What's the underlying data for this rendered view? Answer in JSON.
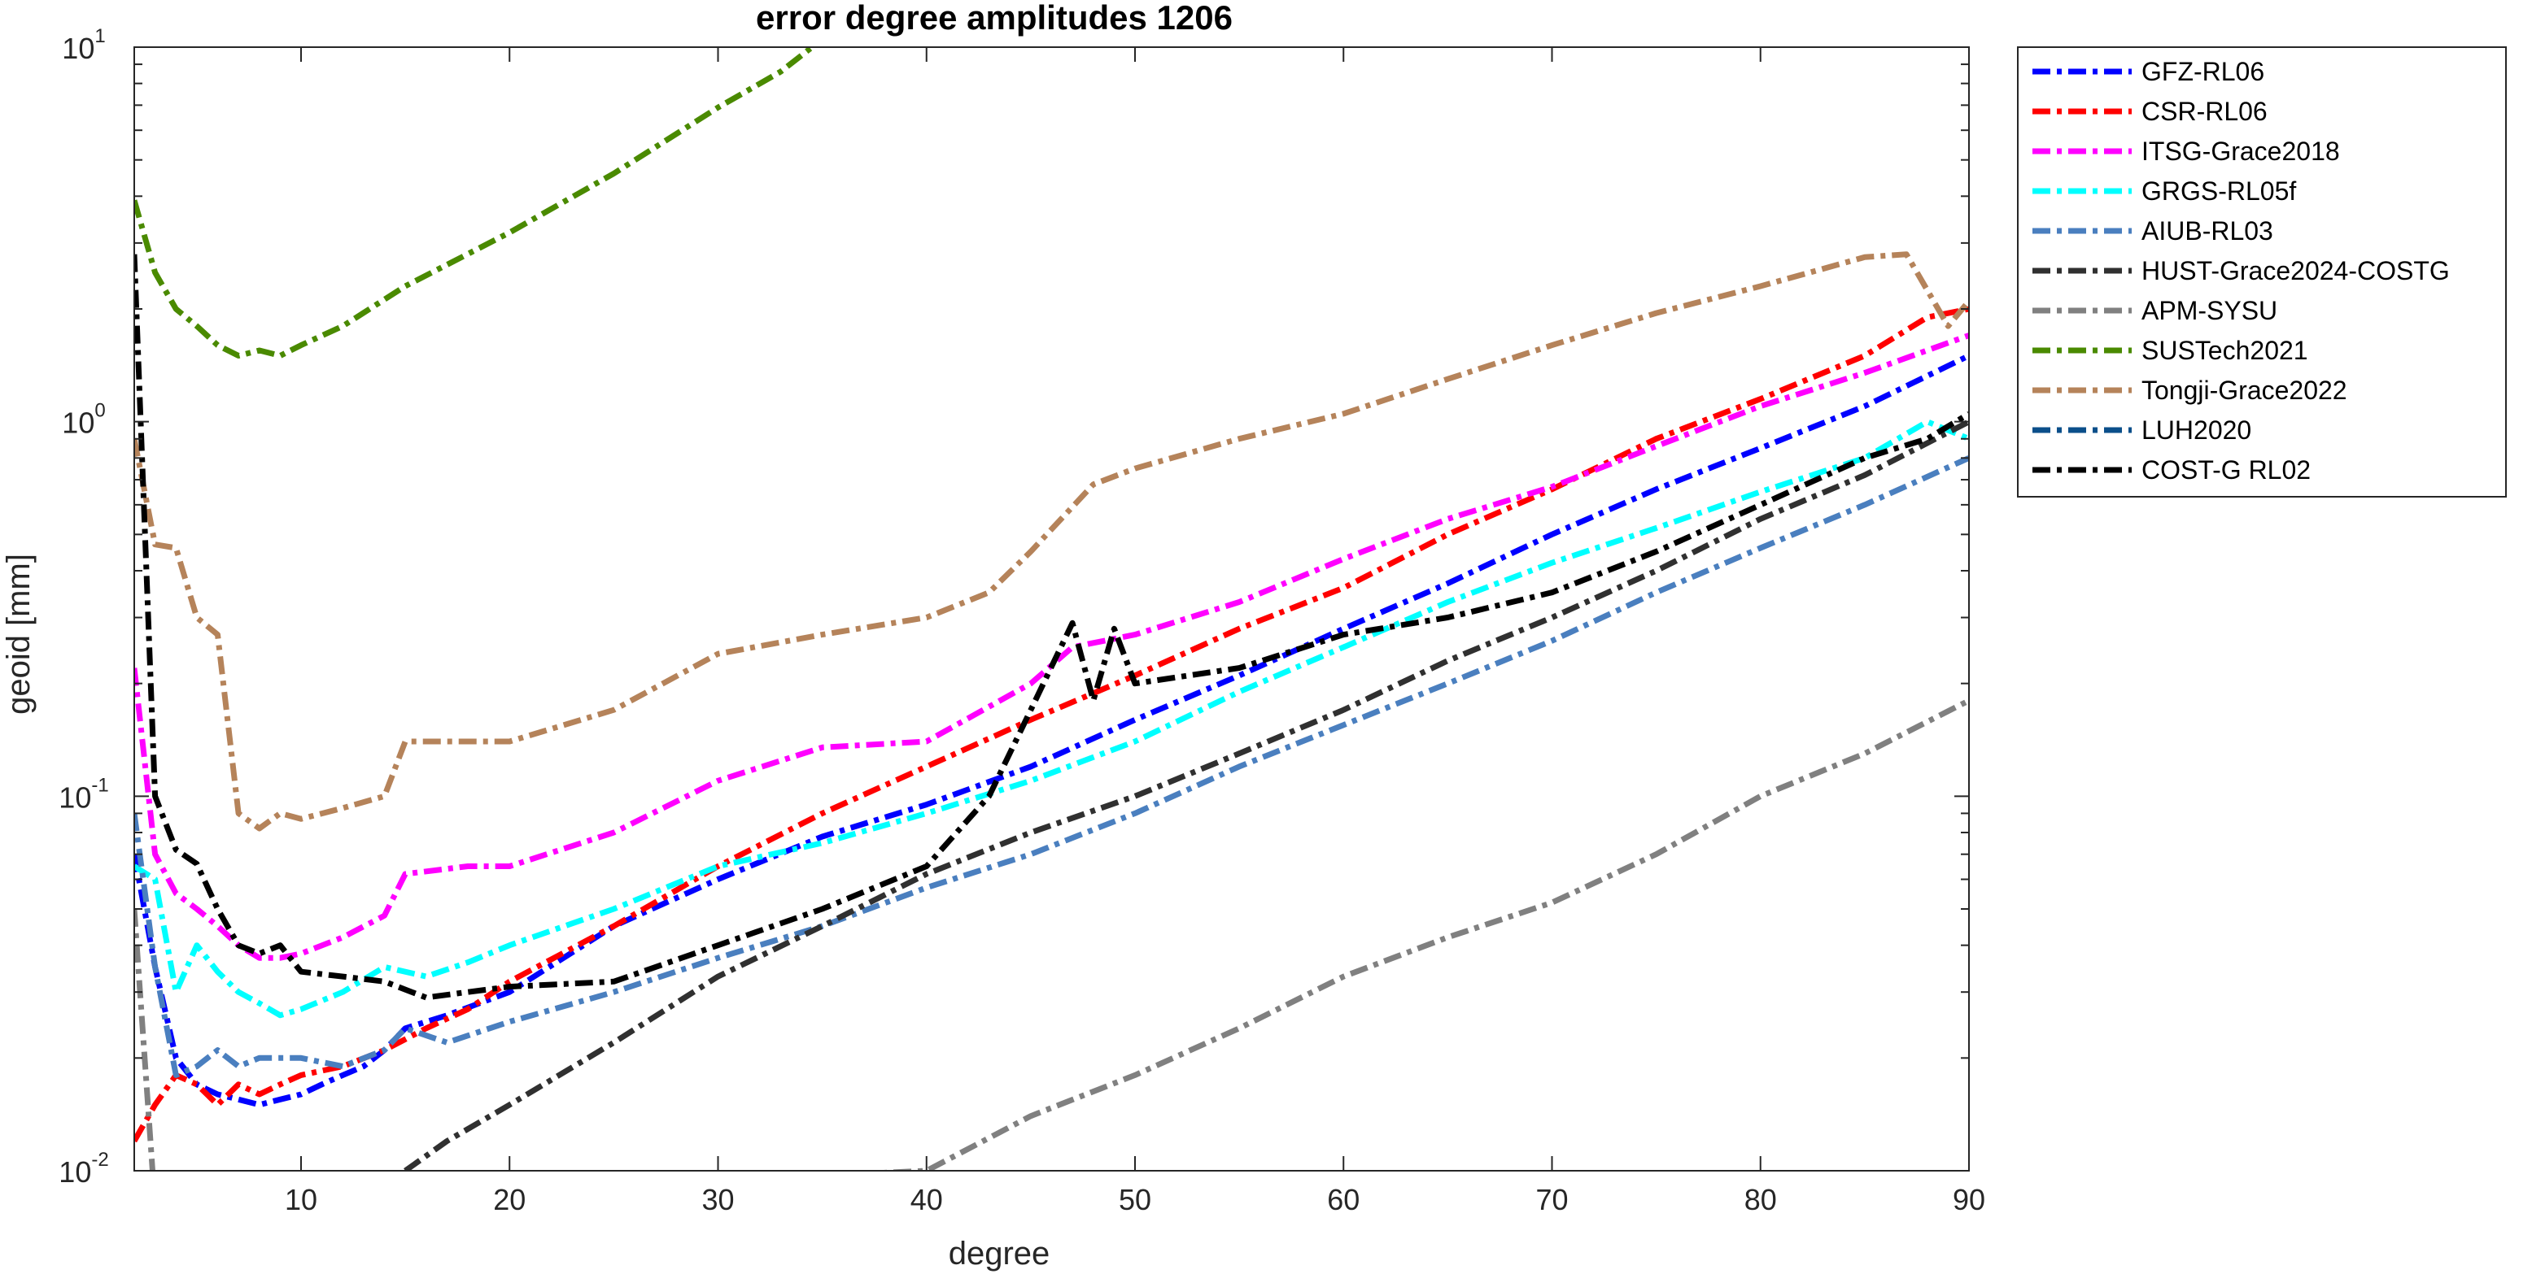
{
  "chart_data": {
    "type": "line",
    "title": "error degree amplitudes 1206",
    "xlabel": "degree",
    "ylabel": "geoid [mm]",
    "xlim": [
      2,
      90
    ],
    "ylim": [
      0.01,
      10
    ],
    "yscale": "log",
    "grid": false,
    "legend_position": "outside-right",
    "x_ticks": [
      10,
      20,
      30,
      40,
      50,
      60,
      70,
      80,
      90
    ],
    "x_tick_labels": [
      "10",
      "20",
      "30",
      "40",
      "50",
      "60",
      "70",
      "80",
      "90"
    ],
    "y_ticks": [
      {
        "value": 0.01,
        "base": "10",
        "exp": "-2"
      },
      {
        "value": 0.1,
        "base": "10",
        "exp": "-1"
      },
      {
        "value": 1,
        "base": "10",
        "exp": "0"
      },
      {
        "value": 10,
        "base": "10",
        "exp": "1"
      }
    ],
    "series": [
      {
        "name": "GFZ-RL06",
        "color": "#0000ff",
        "points": [
          [
            2,
            0.07
          ],
          [
            3,
            0.035
          ],
          [
            4,
            0.02
          ],
          [
            5,
            0.017
          ],
          [
            6,
            0.016
          ],
          [
            7,
            0.0155
          ],
          [
            8,
            0.015
          ],
          [
            9,
            0.0155
          ],
          [
            10,
            0.016
          ],
          [
            11,
            0.017
          ],
          [
            12,
            0.018
          ],
          [
            13,
            0.019
          ],
          [
            14,
            0.021
          ],
          [
            15,
            0.024
          ],
          [
            17,
            0.026
          ],
          [
            20,
            0.03
          ],
          [
            25,
            0.045
          ],
          [
            30,
            0.06
          ],
          [
            35,
            0.078
          ],
          [
            40,
            0.095
          ],
          [
            45,
            0.12
          ],
          [
            50,
            0.16
          ],
          [
            55,
            0.21
          ],
          [
            60,
            0.28
          ],
          [
            65,
            0.37
          ],
          [
            70,
            0.5
          ],
          [
            75,
            0.66
          ],
          [
            80,
            0.85
          ],
          [
            85,
            1.1
          ],
          [
            90,
            1.5
          ]
        ]
      },
      {
        "name": "CSR-RL06",
        "color": "#ff0000",
        "points": [
          [
            2,
            0.012
          ],
          [
            3,
            0.015
          ],
          [
            4,
            0.018
          ],
          [
            5,
            0.017
          ],
          [
            6,
            0.015
          ],
          [
            7,
            0.017
          ],
          [
            8,
            0.016
          ],
          [
            9,
            0.017
          ],
          [
            10,
            0.018
          ],
          [
            12,
            0.019
          ],
          [
            14,
            0.021
          ],
          [
            16,
            0.024
          ],
          [
            18,
            0.027
          ],
          [
            20,
            0.032
          ],
          [
            25,
            0.045
          ],
          [
            30,
            0.065
          ],
          [
            35,
            0.09
          ],
          [
            40,
            0.12
          ],
          [
            45,
            0.16
          ],
          [
            50,
            0.21
          ],
          [
            55,
            0.28
          ],
          [
            60,
            0.36
          ],
          [
            65,
            0.5
          ],
          [
            70,
            0.66
          ],
          [
            75,
            0.9
          ],
          [
            80,
            1.15
          ],
          [
            85,
            1.5
          ],
          [
            88,
            1.9
          ],
          [
            90,
            2.0
          ]
        ]
      },
      {
        "name": "ITSG-Grace2018",
        "color": "#ff00ff",
        "points": [
          [
            2,
            0.22
          ],
          [
            3,
            0.07
          ],
          [
            4,
            0.055
          ],
          [
            5,
            0.05
          ],
          [
            6,
            0.045
          ],
          [
            7,
            0.04
          ],
          [
            8,
            0.037
          ],
          [
            9,
            0.037
          ],
          [
            10,
            0.038
          ],
          [
            12,
            0.042
          ],
          [
            14,
            0.048
          ],
          [
            15,
            0.062
          ],
          [
            18,
            0.065
          ],
          [
            20,
            0.065
          ],
          [
            25,
            0.08
          ],
          [
            30,
            0.11
          ],
          [
            35,
            0.135
          ],
          [
            40,
            0.14
          ],
          [
            45,
            0.2
          ],
          [
            47,
            0.25
          ],
          [
            50,
            0.27
          ],
          [
            55,
            0.33
          ],
          [
            60,
            0.43
          ],
          [
            65,
            0.55
          ],
          [
            70,
            0.67
          ],
          [
            75,
            0.86
          ],
          [
            80,
            1.1
          ],
          [
            85,
            1.35
          ],
          [
            90,
            1.7
          ]
        ]
      },
      {
        "name": "GRGS-RL05f",
        "color": "#00ffff",
        "points": [
          [
            2,
            0.065
          ],
          [
            3,
            0.06
          ],
          [
            4,
            0.03
          ],
          [
            5,
            0.04
          ],
          [
            6,
            0.034
          ],
          [
            7,
            0.03
          ],
          [
            8,
            0.028
          ],
          [
            9,
            0.026
          ],
          [
            10,
            0.027
          ],
          [
            12,
            0.03
          ],
          [
            14,
            0.035
          ],
          [
            16,
            0.033
          ],
          [
            18,
            0.036
          ],
          [
            20,
            0.04
          ],
          [
            25,
            0.05
          ],
          [
            30,
            0.065
          ],
          [
            35,
            0.075
          ],
          [
            40,
            0.09
          ],
          [
            45,
            0.11
          ],
          [
            50,
            0.14
          ],
          [
            55,
            0.19
          ],
          [
            60,
            0.25
          ],
          [
            65,
            0.33
          ],
          [
            70,
            0.42
          ],
          [
            75,
            0.52
          ],
          [
            80,
            0.65
          ],
          [
            85,
            0.8
          ],
          [
            88,
            1.0
          ],
          [
            90,
            0.9
          ]
        ]
      },
      {
        "name": "AIUB-RL03",
        "color": "#4a7fbf",
        "points": [
          [
            2,
            0.09
          ],
          [
            3,
            0.035
          ],
          [
            4,
            0.018
          ],
          [
            5,
            0.019
          ],
          [
            6,
            0.021
          ],
          [
            7,
            0.019
          ],
          [
            8,
            0.02
          ],
          [
            9,
            0.02
          ],
          [
            10,
            0.02
          ],
          [
            12,
            0.019
          ],
          [
            14,
            0.021
          ],
          [
            15,
            0.024
          ],
          [
            17,
            0.022
          ],
          [
            20,
            0.025
          ],
          [
            25,
            0.03
          ],
          [
            30,
            0.037
          ],
          [
            35,
            0.045
          ],
          [
            40,
            0.057
          ],
          [
            45,
            0.07
          ],
          [
            50,
            0.09
          ],
          [
            55,
            0.12
          ],
          [
            60,
            0.155
          ],
          [
            65,
            0.2
          ],
          [
            70,
            0.26
          ],
          [
            75,
            0.35
          ],
          [
            80,
            0.46
          ],
          [
            85,
            0.6
          ],
          [
            90,
            0.8
          ]
        ]
      },
      {
        "name": "HUST-Grace2024-COSTG",
        "color": "#303030",
        "points": [
          [
            15,
            0.01
          ],
          [
            17,
            0.012
          ],
          [
            20,
            0.015
          ],
          [
            25,
            0.022
          ],
          [
            30,
            0.033
          ],
          [
            35,
            0.045
          ],
          [
            40,
            0.062
          ],
          [
            45,
            0.08
          ],
          [
            50,
            0.1
          ],
          [
            55,
            0.13
          ],
          [
            60,
            0.17
          ],
          [
            65,
            0.23
          ],
          [
            70,
            0.3
          ],
          [
            75,
            0.4
          ],
          [
            80,
            0.55
          ],
          [
            85,
            0.72
          ],
          [
            90,
            1.0
          ]
        ]
      },
      {
        "name": "APM-SYSU",
        "color": "#808080",
        "points": [
          [
            2,
            0.05
          ],
          [
            3,
            0.008
          ],
          [
            40,
            0.01
          ],
          [
            45,
            0.014
          ],
          [
            50,
            0.018
          ],
          [
            55,
            0.024
          ],
          [
            60,
            0.033
          ],
          [
            65,
            0.042
          ],
          [
            70,
            0.052
          ],
          [
            75,
            0.07
          ],
          [
            80,
            0.1
          ],
          [
            85,
            0.13
          ],
          [
            90,
            0.18
          ]
        ]
      },
      {
        "name": "SUSTech2021",
        "color": "#4a8a00",
        "points": [
          [
            2,
            3.9
          ],
          [
            3,
            2.5
          ],
          [
            4,
            2.0
          ],
          [
            5,
            1.8
          ],
          [
            6,
            1.6
          ],
          [
            7,
            1.5
          ],
          [
            8,
            1.55
          ],
          [
            9,
            1.5
          ],
          [
            10,
            1.6
          ],
          [
            12,
            1.8
          ],
          [
            15,
            2.3
          ],
          [
            20,
            3.2
          ],
          [
            25,
            4.6
          ],
          [
            30,
            6.9
          ],
          [
            33,
            8.6
          ],
          [
            35,
            10.5
          ]
        ]
      },
      {
        "name": "Tongji-Grace2022",
        "color": "#b5835a",
        "points": [
          [
            2,
            0.9
          ],
          [
            3,
            0.47
          ],
          [
            4,
            0.46
          ],
          [
            5,
            0.3
          ],
          [
            6,
            0.27
          ],
          [
            7,
            0.09
          ],
          [
            8,
            0.082
          ],
          [
            9,
            0.09
          ],
          [
            10,
            0.087
          ],
          [
            12,
            0.093
          ],
          [
            14,
            0.1
          ],
          [
            15,
            0.14
          ],
          [
            20,
            0.14
          ],
          [
            25,
            0.17
          ],
          [
            30,
            0.24
          ],
          [
            35,
            0.27
          ],
          [
            40,
            0.3
          ],
          [
            43,
            0.35
          ],
          [
            45,
            0.45
          ],
          [
            48,
            0.68
          ],
          [
            50,
            0.75
          ],
          [
            55,
            0.9
          ],
          [
            60,
            1.05
          ],
          [
            65,
            1.3
          ],
          [
            70,
            1.6
          ],
          [
            75,
            1.95
          ],
          [
            80,
            2.3
          ],
          [
            85,
            2.75
          ],
          [
            87,
            2.8
          ],
          [
            89,
            1.8
          ],
          [
            90,
            2.1
          ]
        ]
      },
      {
        "name": "LUH2020",
        "color": "#0b4f8a",
        "points": []
      },
      {
        "name": "COST-G RL02",
        "color": "#000000",
        "points": [
          [
            2,
            2.8
          ],
          [
            3,
            0.1
          ],
          [
            4,
            0.072
          ],
          [
            5,
            0.066
          ],
          [
            6,
            0.05
          ],
          [
            7,
            0.04
          ],
          [
            8,
            0.038
          ],
          [
            9,
            0.04
          ],
          [
            10,
            0.034
          ],
          [
            12,
            0.033
          ],
          [
            14,
            0.032
          ],
          [
            16,
            0.029
          ],
          [
            18,
            0.03
          ],
          [
            20,
            0.031
          ],
          [
            25,
            0.032
          ],
          [
            30,
            0.04
          ],
          [
            35,
            0.05
          ],
          [
            40,
            0.065
          ],
          [
            43,
            0.1
          ],
          [
            45,
            0.17
          ],
          [
            47,
            0.29
          ],
          [
            48,
            0.18
          ],
          [
            49,
            0.28
          ],
          [
            50,
            0.2
          ],
          [
            55,
            0.22
          ],
          [
            60,
            0.27
          ],
          [
            65,
            0.3
          ],
          [
            70,
            0.35
          ],
          [
            75,
            0.45
          ],
          [
            80,
            0.6
          ],
          [
            85,
            0.8
          ],
          [
            88,
            0.9
          ],
          [
            90,
            1.05
          ]
        ]
      }
    ]
  }
}
